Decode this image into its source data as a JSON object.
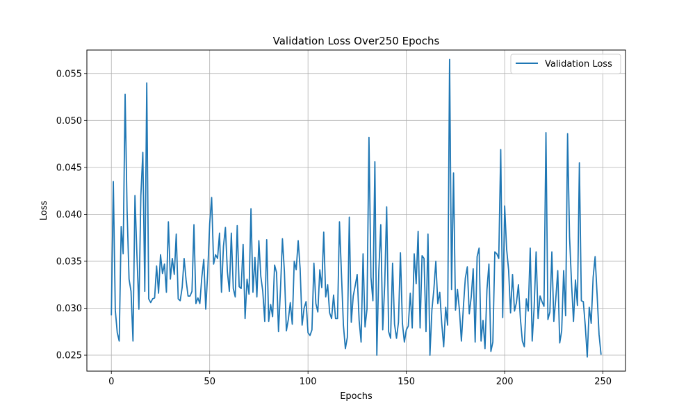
{
  "chart_data": {
    "type": "line",
    "title": "Validation Loss Over250 Epochs",
    "xlabel": "Epochs",
    "ylabel": "Loss",
    "xlim": [
      -12.45,
      261.45
    ],
    "ylim": [
      0.0233,
      0.0575
    ],
    "xticks": [
      0,
      50,
      100,
      150,
      200,
      250
    ],
    "yticks": [
      0.025,
      0.03,
      0.035,
      0.04,
      0.045,
      0.05,
      0.055
    ],
    "ytick_labels": [
      "0.025",
      "0.030",
      "0.035",
      "0.040",
      "0.045",
      "0.050",
      "0.055"
    ],
    "grid": true,
    "legend_position": "top-right",
    "series": [
      {
        "name": "Validation Loss",
        "color": "#1f77b4",
        "x_start": 0,
        "x_step": 1,
        "values": [
          0.0293,
          0.0435,
          0.0298,
          0.0274,
          0.0265,
          0.0387,
          0.0358,
          0.0528,
          0.0404,
          0.0331,
          0.0318,
          0.0265,
          0.042,
          0.0357,
          0.0299,
          0.042,
          0.0466,
          0.0318,
          0.054,
          0.031,
          0.0306,
          0.031,
          0.0311,
          0.0345,
          0.0316,
          0.0357,
          0.0337,
          0.0347,
          0.0317,
          0.0392,
          0.0331,
          0.0353,
          0.0336,
          0.0379,
          0.031,
          0.0308,
          0.0322,
          0.0353,
          0.033,
          0.0313,
          0.0313,
          0.0318,
          0.0389,
          0.0305,
          0.0311,
          0.0305,
          0.0333,
          0.0352,
          0.0299,
          0.0338,
          0.039,
          0.0418,
          0.0347,
          0.0357,
          0.0353,
          0.038,
          0.0317,
          0.0366,
          0.0386,
          0.0339,
          0.0318,
          0.038,
          0.0321,
          0.0312,
          0.0388,
          0.0323,
          0.0321,
          0.0368,
          0.0289,
          0.0331,
          0.0315,
          0.0406,
          0.0317,
          0.0354,
          0.0312,
          0.0372,
          0.0334,
          0.0318,
          0.0286,
          0.0373,
          0.0286,
          0.0304,
          0.0291,
          0.0346,
          0.0338,
          0.0275,
          0.032,
          0.0374,
          0.0339,
          0.0276,
          0.0288,
          0.0306,
          0.0283,
          0.035,
          0.0341,
          0.0372,
          0.0342,
          0.0282,
          0.03,
          0.0307,
          0.0274,
          0.0271,
          0.0277,
          0.0348,
          0.0305,
          0.0296,
          0.0341,
          0.0322,
          0.0381,
          0.0312,
          0.0325,
          0.0295,
          0.0289,
          0.0314,
          0.0289,
          0.0289,
          0.0392,
          0.0337,
          0.0282,
          0.0257,
          0.0269,
          0.0397,
          0.0285,
          0.0313,
          0.0324,
          0.0336,
          0.0287,
          0.0264,
          0.0358,
          0.028,
          0.0299,
          0.0482,
          0.0333,
          0.0308,
          0.0456,
          0.025,
          0.0339,
          0.0389,
          0.0277,
          0.0325,
          0.0408,
          0.0275,
          0.0268,
          0.0348,
          0.0283,
          0.0268,
          0.0285,
          0.0359,
          0.0284,
          0.0264,
          0.0277,
          0.0281,
          0.0316,
          0.0279,
          0.0358,
          0.0326,
          0.0382,
          0.0279,
          0.0356,
          0.0353,
          0.0275,
          0.0379,
          0.025,
          0.0298,
          0.032,
          0.035,
          0.0305,
          0.0317,
          0.0284,
          0.0259,
          0.0301,
          0.0282,
          0.0565,
          0.032,
          0.0444,
          0.0298,
          0.032,
          0.0298,
          0.0265,
          0.0301,
          0.0332,
          0.0344,
          0.0294,
          0.0312,
          0.0342,
          0.0264,
          0.0355,
          0.0364,
          0.0265,
          0.0287,
          0.0257,
          0.032,
          0.0347,
          0.0254,
          0.0264,
          0.036,
          0.0358,
          0.0353,
          0.0469,
          0.029,
          0.0409,
          0.0363,
          0.0341,
          0.0295,
          0.0336,
          0.0297,
          0.0306,
          0.0325,
          0.0289,
          0.0265,
          0.0259,
          0.031,
          0.0297,
          0.0364,
          0.0265,
          0.0301,
          0.036,
          0.0289,
          0.0313,
          0.0307,
          0.0302,
          0.0487,
          0.0288,
          0.0296,
          0.036,
          0.0286,
          0.031,
          0.034,
          0.0263,
          0.0276,
          0.034,
          0.0292,
          0.0486,
          0.0376,
          0.0327,
          0.0286,
          0.033,
          0.0303,
          0.0455,
          0.0308,
          0.0307,
          0.0281,
          0.0248,
          0.0301,
          0.0284,
          0.0333,
          0.0355,
          0.0315,
          0.0272,
          0.0251
        ]
      }
    ]
  }
}
